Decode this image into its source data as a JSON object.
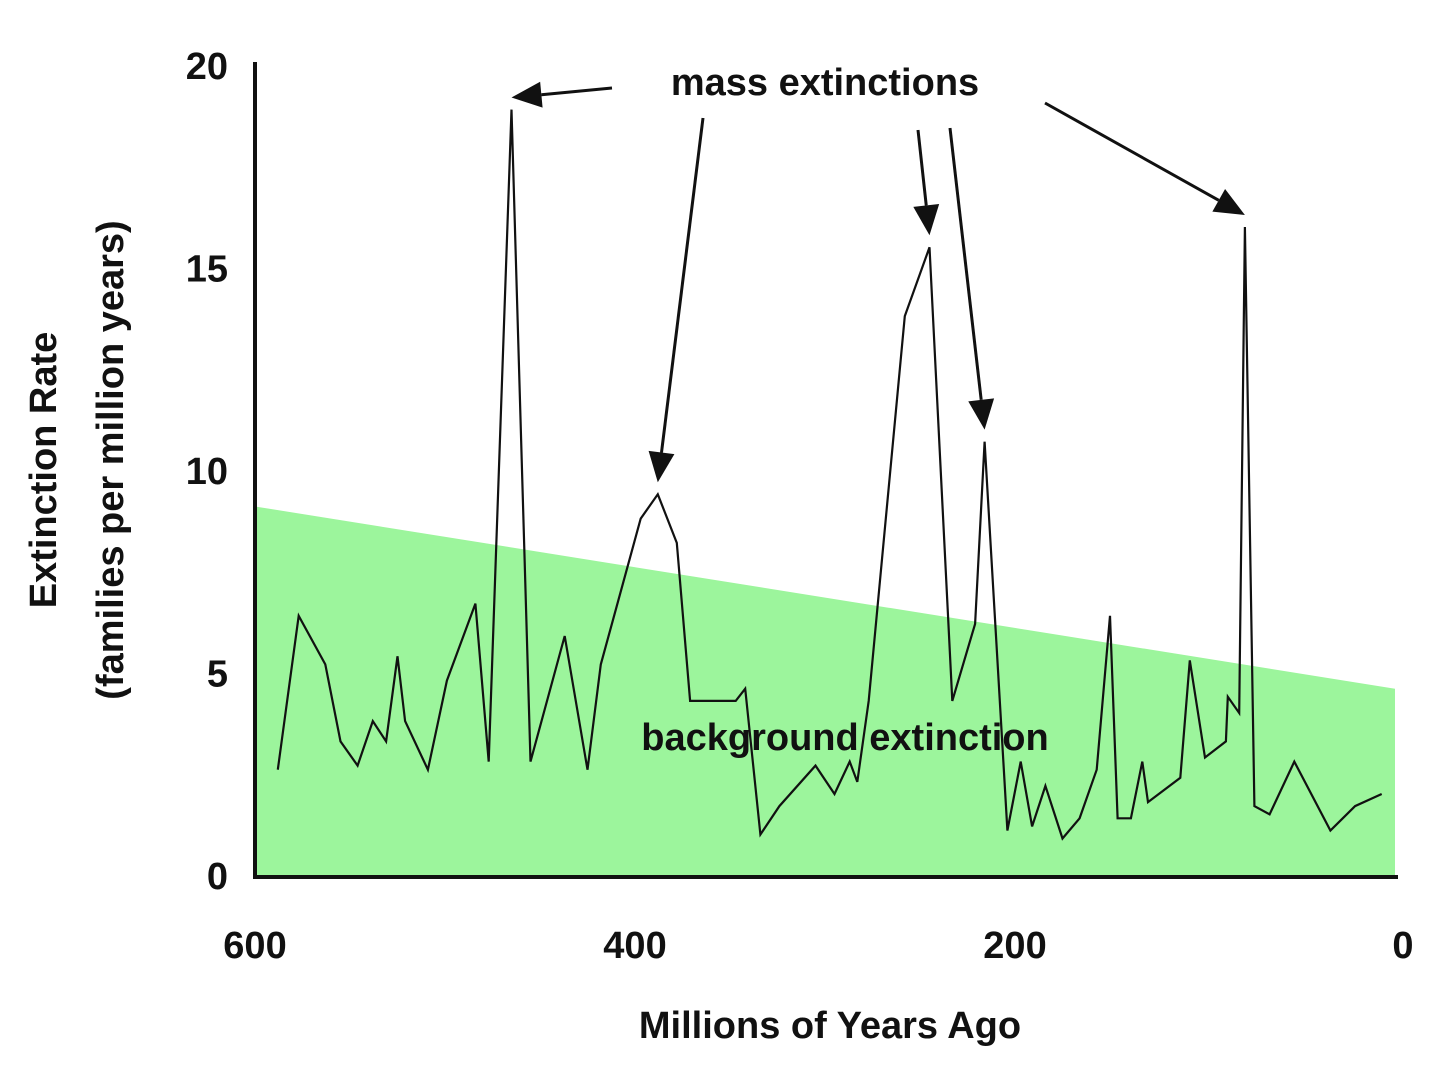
{
  "chart_data": {
    "type": "line",
    "title": "",
    "xlabel": "Millions of Years Ago",
    "ylabel": "Extinction Rate",
    "ylabel2": "(families per million years)",
    "xlim": [
      600,
      0
    ],
    "ylim": [
      0,
      20
    ],
    "x_reversed": true,
    "x_ticks": [
      "600",
      "400",
      "200",
      "0"
    ],
    "y_ticks": [
      "0",
      "5",
      "10",
      "15",
      "20"
    ],
    "grid": false,
    "line_color": "#111111",
    "background_band": {
      "label": "background extinction",
      "color": "#9cf59c",
      "upper_bound": [
        [
          600,
          9.1
        ],
        [
          0,
          4.6
        ]
      ]
    },
    "annotation": {
      "text": "mass extinctions",
      "targets": [
        [
          465,
          18.9
        ],
        [
          388,
          9.4
        ],
        [
          245,
          15.5
        ],
        [
          216,
          10.7
        ],
        [
          79,
          16.0
        ]
      ]
    },
    "series": [
      {
        "x": [
          588,
          577,
          563,
          555,
          546,
          538,
          531,
          525,
          521,
          509,
          499,
          484,
          477,
          465,
          455,
          437,
          425,
          418,
          397,
          388,
          378,
          371,
          347,
          342,
          334,
          324,
          305,
          295,
          287,
          283,
          277,
          258,
          245,
          233,
          221,
          216,
          208,
          204,
          197,
          191,
          184,
          175,
          166,
          157,
          150,
          146,
          139,
          133,
          130,
          113,
          108,
          100,
          89,
          88,
          82,
          79,
          74,
          66,
          53,
          34,
          21,
          7
        ],
        "y": [
          2.6,
          6.4,
          5.2,
          3.3,
          2.7,
          3.8,
          3.3,
          5.4,
          3.8,
          2.6,
          4.8,
          6.7,
          2.8,
          18.9,
          2.8,
          5.9,
          2.6,
          5.2,
          8.8,
          9.4,
          8.2,
          4.3,
          4.3,
          4.6,
          1.0,
          1.7,
          2.7,
          2.0,
          2.8,
          2.3,
          4.3,
          13.8,
          15.5,
          4.3,
          6.2,
          10.7,
          4.3,
          1.1,
          2.8,
          1.2,
          2.2,
          0.9,
          1.4,
          2.6,
          6.4,
          1.4,
          1.4,
          2.8,
          1.8,
          2.4,
          5.3,
          2.9,
          3.3,
          4.4,
          4.0,
          16.0,
          1.7,
          1.5,
          2.8,
          1.1,
          1.7,
          2.0
        ]
      }
    ]
  }
}
